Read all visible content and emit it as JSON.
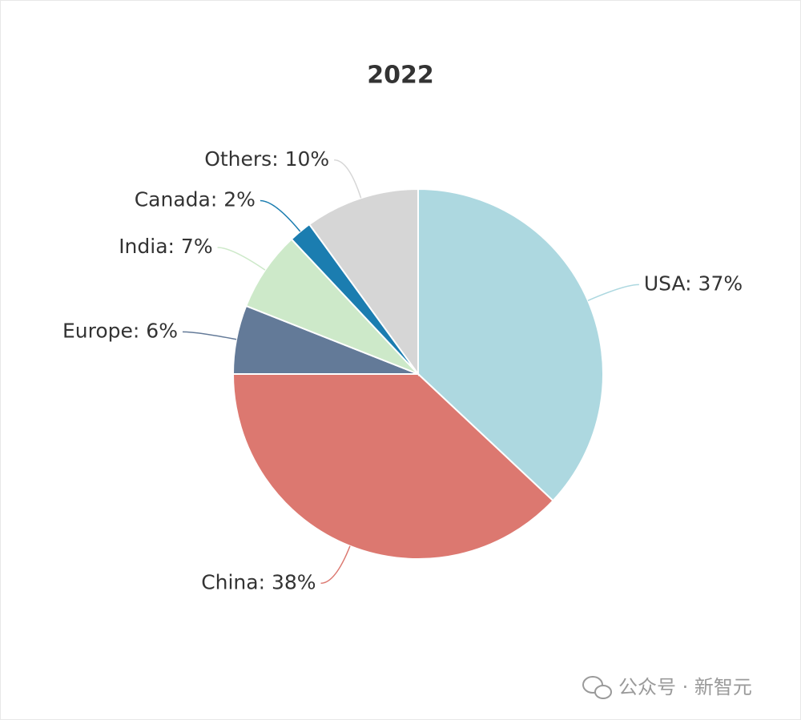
{
  "chart_data": {
    "type": "pie",
    "title": "2022",
    "values": [
      37,
      38,
      6,
      7,
      2,
      10
    ],
    "value_labels": [
      "USA: 37%",
      "China: 38%",
      "Europe: 6%",
      "India: 7%",
      "Canada: 2%",
      "Others: 10%"
    ],
    "colors": [
      "#add8e0",
      "#dc7870",
      "#637a98",
      "#cde9c9",
      "#1b7db0",
      "#d6d6d6"
    ],
    "watermark": "公众号 · 新智元"
  }
}
